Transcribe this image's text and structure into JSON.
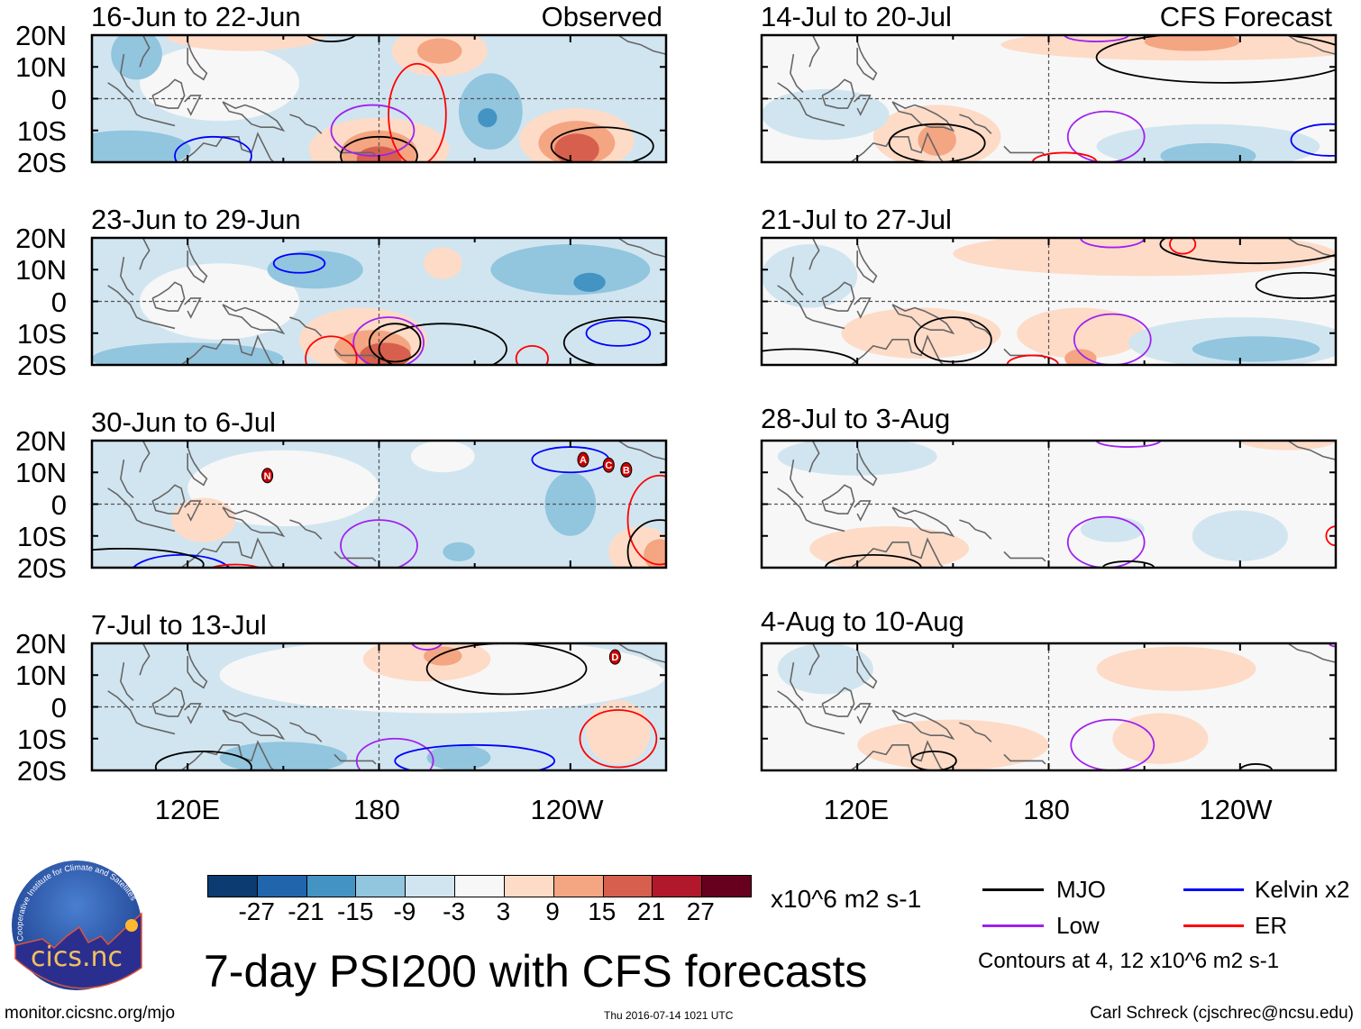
{
  "title": "7-day PSI200 with CFS forecasts",
  "footer": {
    "url": "monitor.cicsnc.org/mjo",
    "timestamp": "Thu 2016-07-14 1021 UTC",
    "author": "Carl Schreck (cjschrec@ncsu.edu)"
  },
  "logo": {
    "name": "cics.nc",
    "ring_text": "Cooperative Institute for Climate and Satellites"
  },
  "chart_data": {
    "type": "heatmap",
    "title": "7-day PSI200 with CFS forecasts",
    "units": "x10^6 m2 s-1",
    "lon_range": [
      90,
      270
    ],
    "lat_range": [
      -20,
      20
    ],
    "x_ticks": [
      {
        "lon": 120,
        "label": "120E"
      },
      {
        "lon": 180,
        "label": "180"
      },
      {
        "lon": 240,
        "label": "120W"
      }
    ],
    "y_ticks": [
      {
        "lat": 20,
        "label": "20N"
      },
      {
        "lat": 10,
        "label": "10N"
      },
      {
        "lat": 0,
        "label": "0"
      },
      {
        "lat": -10,
        "label": "10S"
      },
      {
        "lat": -20,
        "label": "20S"
      }
    ],
    "colorbar": {
      "levels": [
        "-27",
        "-21",
        "-15",
        "-9",
        "-3",
        "3",
        "9",
        "15",
        "21",
        "27"
      ],
      "colors": [
        "#0b3b70",
        "#2166ac",
        "#4393c3",
        "#92c5de",
        "#d1e5f0",
        "#f7f7f7",
        "#fddbc7",
        "#f4a582",
        "#d6604d",
        "#b2182b",
        "#67001f"
      ]
    },
    "legend": [
      {
        "label": "MJO",
        "color": "#000000"
      },
      {
        "label": "Kelvin x2",
        "color": "#0000ff"
      },
      {
        "label": "Low",
        "color": "#a020f0"
      },
      {
        "label": "ER",
        "color": "#ff0000"
      }
    ],
    "contour_note": "Contours at 4, 12 x10^6 m2 s-1",
    "panels": [
      {
        "title": "16-Jun to 22-Jun",
        "label": "Observed",
        "bg": 4,
        "blobs": [
          {
            "lon": 130,
            "lat": 5,
            "rlon": 25,
            "rlat": 12,
            "bin": 5
          },
          {
            "lon": 138,
            "lat": 20,
            "rlon": 25,
            "rlat": 5,
            "bin": 6
          },
          {
            "lon": 199,
            "lat": 15,
            "rlon": 15,
            "rlat": 8,
            "bin": 6
          },
          {
            "lon": 199,
            "lat": 15,
            "rlon": 7,
            "rlat": 4,
            "bin": 7
          },
          {
            "lon": 242,
            "lat": -13,
            "rlon": 18,
            "rlat": 10,
            "bin": 6
          },
          {
            "lon": 242,
            "lat": -14,
            "rlon": 12,
            "rlat": 7,
            "bin": 7
          },
          {
            "lon": 242,
            "lat": -16,
            "rlon": 7,
            "rlat": 5,
            "bin": 8
          },
          {
            "lon": 180,
            "lat": -16,
            "rlon": 22,
            "rlat": 10,
            "bin": 6
          },
          {
            "lon": 180,
            "lat": -17,
            "rlon": 12,
            "rlat": 7,
            "bin": 7
          },
          {
            "lon": 180,
            "lat": -19,
            "rlon": 7,
            "rlat": 4,
            "bin": 8
          },
          {
            "lon": 215,
            "lat": -4,
            "rlon": 10,
            "rlat": 12,
            "bin": 3
          },
          {
            "lon": 214,
            "lat": -6,
            "rlon": 3,
            "rlat": 3,
            "bin": 2
          },
          {
            "lon": 101,
            "lat": -16,
            "rlon": 20,
            "rlat": 6,
            "bin": 3
          },
          {
            "lon": 104,
            "lat": 14,
            "rlon": 8,
            "rlat": 8,
            "bin": 3
          }
        ],
        "contours": [
          {
            "type": "MJO",
            "lon": 180,
            "lat": -18,
            "rlon": 12,
            "rlat": 6
          },
          {
            "type": "MJO",
            "lon": 250,
            "lat": -15,
            "rlon": 16,
            "rlat": 6
          },
          {
            "type": "Low",
            "lon": 178,
            "lat": -10,
            "rlon": 13,
            "rlat": 8
          },
          {
            "type": "ER",
            "lon": 192,
            "lat": -5,
            "rlon": 9,
            "rlat": 16
          },
          {
            "type": "Kelvin",
            "lon": 128,
            "lat": -18,
            "rlon": 12,
            "rlat": 6
          },
          {
            "type": "MJO",
            "lon": 165,
            "lat": 21,
            "rlon": 8,
            "rlat": 3
          }
        ],
        "storms": []
      },
      {
        "title": "14-Jul to 20-Jul",
        "label": "CFS Forecast",
        "bg": 5,
        "blobs": [
          {
            "lon": 225,
            "lat": 17,
            "rlon": 60,
            "rlat": 5,
            "bin": 6
          },
          {
            "lon": 225,
            "lat": 18,
            "rlon": 15,
            "rlat": 3,
            "bin": 7
          },
          {
            "lon": 145,
            "lat": -12,
            "rlon": 20,
            "rlat": 10,
            "bin": 6
          },
          {
            "lon": 145,
            "lat": -13,
            "rlon": 6,
            "rlat": 5,
            "bin": 7
          },
          {
            "lon": 230,
            "lat": -15,
            "rlon": 35,
            "rlat": 7,
            "bin": 4
          },
          {
            "lon": 230,
            "lat": -18,
            "rlon": 15,
            "rlat": 4,
            "bin": 3
          },
          {
            "lon": 110,
            "lat": -5,
            "rlon": 20,
            "rlat": 8,
            "bin": 4
          }
        ],
        "contours": [
          {
            "type": "MJO",
            "lon": 235,
            "lat": 13,
            "rlon": 40,
            "rlat": 8
          },
          {
            "type": "Low",
            "lon": 195,
            "lat": 20,
            "rlon": 10,
            "rlat": 2
          },
          {
            "type": "Low",
            "lon": 198,
            "lat": -12,
            "rlon": 12,
            "rlat": 8
          },
          {
            "type": "Kelvin",
            "lon": 268,
            "lat": -13,
            "rlon": 12,
            "rlat": 5
          },
          {
            "type": "MJO",
            "lon": 145,
            "lat": -14,
            "rlon": 15,
            "rlat": 6
          },
          {
            "type": "ER",
            "lon": 185,
            "lat": -20,
            "rlon": 10,
            "rlat": 3
          }
        ],
        "storms": []
      },
      {
        "title": "23-Jun to 29-Jun",
        "label": "",
        "bg": 4,
        "blobs": [
          {
            "lon": 130,
            "lat": 0,
            "rlon": 25,
            "rlat": 12,
            "bin": 5
          },
          {
            "lon": 240,
            "lat": 10,
            "rlon": 25,
            "rlat": 8,
            "bin": 3
          },
          {
            "lon": 246,
            "lat": 6,
            "rlon": 5,
            "rlat": 3,
            "bin": 2
          },
          {
            "lon": 160,
            "lat": 10,
            "rlon": 15,
            "rlat": 6,
            "bin": 3
          },
          {
            "lon": 120,
            "lat": -18,
            "rlon": 30,
            "rlat": 5,
            "bin": 3
          },
          {
            "lon": 175,
            "lat": -12,
            "rlon": 20,
            "rlat": 10,
            "bin": 6
          },
          {
            "lon": 178,
            "lat": -15,
            "rlon": 12,
            "rlat": 6,
            "bin": 7
          },
          {
            "lon": 182,
            "lat": -17,
            "rlon": 8,
            "rlat": 4,
            "bin": 8
          },
          {
            "lon": 200,
            "lat": 12,
            "rlon": 6,
            "rlat": 5,
            "bin": 6
          }
        ],
        "contours": [
          {
            "type": "Kelvin",
            "lon": 155,
            "lat": 12,
            "rlon": 8,
            "rlat": 3
          },
          {
            "type": "MJO",
            "lon": 200,
            "lat": -15,
            "rlon": 20,
            "rlat": 8
          },
          {
            "type": "Low",
            "lon": 183,
            "lat": -13,
            "rlon": 11,
            "rlat": 8
          },
          {
            "type": "ER",
            "lon": 165,
            "lat": -18,
            "rlon": 8,
            "rlat": 7
          },
          {
            "type": "MJO",
            "lon": 258,
            "lat": -13,
            "rlon": 20,
            "rlat": 8
          },
          {
            "type": "Kelvin",
            "lon": 255,
            "lat": -10,
            "rlon": 10,
            "rlat": 4
          },
          {
            "type": "ER",
            "lon": 228,
            "lat": -18,
            "rlon": 5,
            "rlat": 4
          },
          {
            "type": "MJO",
            "lon": 185,
            "lat": -13,
            "rlon": 8,
            "rlat": 6
          }
        ],
        "storms": []
      },
      {
        "title": "21-Jul to 27-Jul",
        "label": "",
        "bg": 5,
        "blobs": [
          {
            "lon": 210,
            "lat": 15,
            "rlon": 60,
            "rlat": 7,
            "bin": 6
          },
          {
            "lon": 140,
            "lat": -10,
            "rlon": 25,
            "rlat": 8,
            "bin": 6
          },
          {
            "lon": 190,
            "lat": -10,
            "rlon": 20,
            "rlat": 8,
            "bin": 6
          },
          {
            "lon": 190,
            "lat": -18,
            "rlon": 5,
            "rlat": 3,
            "bin": 7
          },
          {
            "lon": 240,
            "lat": -13,
            "rlon": 35,
            "rlat": 8,
            "bin": 4
          },
          {
            "lon": 245,
            "lat": -15,
            "rlon": 20,
            "rlat": 4,
            "bin": 3
          },
          {
            "lon": 105,
            "lat": 8,
            "rlon": 15,
            "rlat": 10,
            "bin": 4
          }
        ],
        "contours": [
          {
            "type": "MJO",
            "lon": 260,
            "lat": 5,
            "rlon": 15,
            "rlat": 4
          },
          {
            "type": "MJO",
            "lon": 245,
            "lat": 18,
            "rlon": 30,
            "rlat": 6
          },
          {
            "type": "Low",
            "lon": 200,
            "lat": -12,
            "rlon": 12,
            "rlat": 8
          },
          {
            "type": "ER",
            "lon": 222,
            "lat": 18,
            "rlon": 4,
            "rlat": 3
          },
          {
            "type": "MJO",
            "lon": 150,
            "lat": -12,
            "rlon": 12,
            "rlat": 7
          },
          {
            "type": "MJO",
            "lon": 100,
            "lat": -20,
            "rlon": 20,
            "rlat": 5
          },
          {
            "type": "ER",
            "lon": 175,
            "lat": -20,
            "rlon": 8,
            "rlat": 3
          },
          {
            "type": "Low",
            "lon": 200,
            "lat": 20,
            "rlon": 10,
            "rlat": 3
          }
        ],
        "storms": []
      },
      {
        "title": "30-Jun to 6-Jul",
        "label": "",
        "bg": 4,
        "blobs": [
          {
            "lon": 150,
            "lat": 5,
            "rlon": 30,
            "rlat": 12,
            "bin": 5
          },
          {
            "lon": 200,
            "lat": 15,
            "rlon": 10,
            "rlat": 5,
            "bin": 5
          },
          {
            "lon": 125,
            "lat": -5,
            "rlon": 10,
            "rlat": 7,
            "bin": 6
          },
          {
            "lon": 262,
            "lat": -15,
            "rlon": 10,
            "rlat": 8,
            "bin": 6
          },
          {
            "lon": 268,
            "lat": -16,
            "rlon": 5,
            "rlat": 5,
            "bin": 7
          },
          {
            "lon": 240,
            "lat": 0,
            "rlon": 8,
            "rlat": 10,
            "bin": 3
          },
          {
            "lon": 205,
            "lat": -15,
            "rlon": 5,
            "rlat": 3,
            "bin": 3
          }
        ],
        "contours": [
          {
            "type": "Kelvin",
            "lon": 240,
            "lat": 14,
            "rlon": 12,
            "rlat": 4
          },
          {
            "type": "Low",
            "lon": 180,
            "lat": -13,
            "rlon": 12,
            "rlat": 8
          },
          {
            "type": "Kelvin",
            "lon": 118,
            "lat": -22,
            "rlon": 16,
            "rlat": 6
          },
          {
            "type": "MJO",
            "lon": 100,
            "lat": -19,
            "rlon": 25,
            "rlat": 5
          },
          {
            "type": "ER",
            "lon": 135,
            "lat": -22,
            "rlon": 10,
            "rlat": 3
          },
          {
            "type": "ER",
            "lon": 268,
            "lat": -5,
            "rlon": 10,
            "rlat": 14
          },
          {
            "type": "MJO",
            "lon": 268,
            "lat": -15,
            "rlon": 10,
            "rlat": 10
          }
        ],
        "storms": [
          {
            "id": "N",
            "lon": 145,
            "lat": 9
          },
          {
            "id": "A",
            "lon": 244,
            "lat": 14
          },
          {
            "id": "C",
            "lon": 252,
            "lat": 12.3
          },
          {
            "id": "B",
            "lon": 253,
            "lat": 10.8
          }
        ]
      },
      {
        "title": "28-Jul to 3-Aug",
        "label": "",
        "bg": 5,
        "blobs": [
          {
            "lon": 120,
            "lat": 15,
            "rlon": 25,
            "rlat": 6,
            "bin": 4
          },
          {
            "lon": 130,
            "lat": -14,
            "rlon": 25,
            "rlat": 7,
            "bin": 6
          },
          {
            "lon": 240,
            "lat": -10,
            "rlon": 15,
            "rlat": 8,
            "bin": 4
          },
          {
            "lon": 200,
            "lat": -8,
            "rlon": 10,
            "rlat": 4,
            "bin": 4
          },
          {
            "lon": 255,
            "lat": 20,
            "rlon": 15,
            "rlat": 3,
            "bin": 6
          }
        ],
        "contours": [
          {
            "type": "Low",
            "lon": 198,
            "lat": -12,
            "rlon": 12,
            "rlat": 8
          },
          {
            "type": "Low",
            "lon": 205,
            "lat": 20,
            "rlon": 10,
            "rlat": 2
          },
          {
            "type": "MJO",
            "lon": 125,
            "lat": -20,
            "rlon": 15,
            "rlat": 4
          },
          {
            "type": "ER",
            "lon": 270,
            "lat": -10,
            "rlon": 3,
            "rlat": 3
          },
          {
            "type": "MJO",
            "lon": 205,
            "lat": -20,
            "rlon": 8,
            "rlat": 2
          }
        ],
        "storms": []
      },
      {
        "title": "7-Jul to 13-Jul",
        "label": "",
        "bg": 4,
        "blobs": [
          {
            "lon": 200,
            "lat": 10,
            "rlon": 70,
            "rlat": 12,
            "bin": 5
          },
          {
            "lon": 195,
            "lat": 15,
            "rlon": 20,
            "rlat": 7,
            "bin": 6
          },
          {
            "lon": 200,
            "lat": 16,
            "rlon": 6,
            "rlat": 3,
            "bin": 7
          },
          {
            "lon": 150,
            "lat": -16,
            "rlon": 20,
            "rlat": 5,
            "bin": 3
          },
          {
            "lon": 205,
            "lat": -16,
            "rlon": 10,
            "rlat": 4,
            "bin": 3
          },
          {
            "lon": 255,
            "lat": -8,
            "rlon": 10,
            "rlat": 10,
            "bin": 6
          }
        ],
        "contours": [
          {
            "type": "MJO",
            "lon": 220,
            "lat": 12,
            "rlon": 25,
            "rlat": 8
          },
          {
            "type": "Low",
            "lon": 195,
            "lat": 21,
            "rlon": 5,
            "rlat": 3
          },
          {
            "type": "MJO",
            "lon": 125,
            "lat": -19,
            "rlon": 15,
            "rlat": 5
          },
          {
            "type": "Low",
            "lon": 185,
            "lat": -17,
            "rlon": 12,
            "rlat": 7
          },
          {
            "type": "Kelvin",
            "lon": 210,
            "lat": -17,
            "rlon": 25,
            "rlat": 5
          },
          {
            "type": "ER",
            "lon": 255,
            "lat": -10,
            "rlon": 12,
            "rlat": 9
          }
        ],
        "storms": [
          {
            "id": "D",
            "lon": 254,
            "lat": 15.7
          }
        ]
      },
      {
        "title": "4-Aug to 10-Aug",
        "label": "",
        "bg": 5,
        "blobs": [
          {
            "lon": 150,
            "lat": -12,
            "rlon": 30,
            "rlat": 8,
            "bin": 6
          },
          {
            "lon": 220,
            "lat": 12,
            "rlon": 25,
            "rlat": 7,
            "bin": 6
          },
          {
            "lon": 215,
            "lat": -10,
            "rlon": 15,
            "rlat": 8,
            "bin": 6
          },
          {
            "lon": 110,
            "lat": 12,
            "rlon": 15,
            "rlat": 8,
            "bin": 4
          }
        ],
        "contours": [
          {
            "type": "Low",
            "lon": 200,
            "lat": -12,
            "rlon": 13,
            "rlat": 8
          },
          {
            "type": "MJO",
            "lon": 144,
            "lat": -17,
            "rlon": 7,
            "rlat": 3
          },
          {
            "type": "MJO",
            "lon": 245,
            "lat": -20,
            "rlon": 5,
            "rlat": 2
          },
          {
            "type": "Low",
            "lon": 270,
            "lat": 20,
            "rlon": 2,
            "rlat": 1
          }
        ],
        "storms": []
      }
    ]
  }
}
